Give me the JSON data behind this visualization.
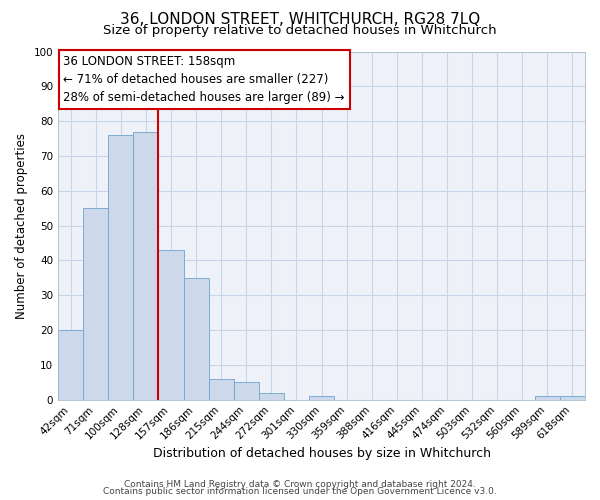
{
  "title": "36, LONDON STREET, WHITCHURCH, RG28 7LQ",
  "subtitle": "Size of property relative to detached houses in Whitchurch",
  "xlabel": "Distribution of detached houses by size in Whitchurch",
  "ylabel": "Number of detached properties",
  "bar_labels": [
    "42sqm",
    "71sqm",
    "100sqm",
    "128sqm",
    "157sqm",
    "186sqm",
    "215sqm",
    "244sqm",
    "272sqm",
    "301sqm",
    "330sqm",
    "359sqm",
    "388sqm",
    "416sqm",
    "445sqm",
    "474sqm",
    "503sqm",
    "532sqm",
    "560sqm",
    "589sqm",
    "618sqm"
  ],
  "bar_values": [
    20,
    55,
    76,
    77,
    43,
    35,
    6,
    5,
    2,
    0,
    1,
    0,
    0,
    0,
    0,
    0,
    0,
    0,
    0,
    1,
    1
  ],
  "bar_color": "#cdd9ea",
  "bar_edge_color": "#7aadd4",
  "vline_after_index": 3,
  "vline_color": "#cc0000",
  "annotation_line1": "36 LONDON STREET: 158sqm",
  "annotation_line2": "← 71% of detached houses are smaller (227)",
  "annotation_line3": "28% of semi-detached houses are larger (89) →",
  "annotation_box_color": "#cc0000",
  "annotation_box_bg": "#ffffff",
  "ylim": [
    0,
    100
  ],
  "yticks": [
    0,
    10,
    20,
    30,
    40,
    50,
    60,
    70,
    80,
    90,
    100
  ],
  "grid_color": "#c8d4e8",
  "bg_color": "#eef2f8",
  "footer_line1": "Contains HM Land Registry data © Crown copyright and database right 2024.",
  "footer_line2": "Contains public sector information licensed under the Open Government Licence v3.0.",
  "title_fontsize": 11,
  "subtitle_fontsize": 9.5,
  "xlabel_fontsize": 9,
  "ylabel_fontsize": 8.5,
  "tick_fontsize": 7.5,
  "annotation_fontsize": 8.5,
  "footer_fontsize": 6.5
}
